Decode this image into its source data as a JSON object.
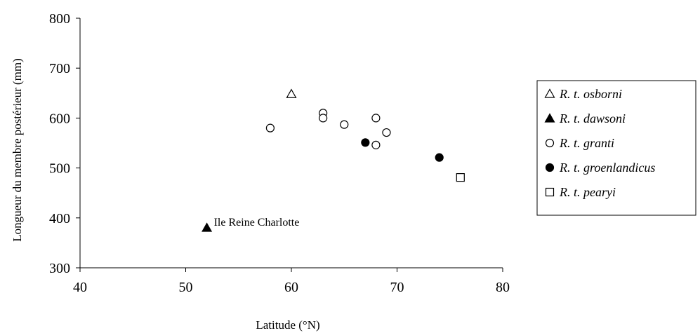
{
  "chart_data": {
    "type": "scatter",
    "xlabel": "Latitude (°N)",
    "ylabel": "Longueur du membre postérieur (mm)",
    "xlim": [
      40,
      80
    ],
    "ylim": [
      300,
      800
    ],
    "xticks": [
      40,
      50,
      60,
      70,
      80
    ],
    "yticks": [
      300,
      400,
      500,
      600,
      700,
      800
    ],
    "xtick_labels": [
      "40",
      "50",
      "60",
      "70",
      "80"
    ],
    "ytick_labels": [
      "300",
      "400",
      "500",
      "600",
      "700",
      "800"
    ],
    "grid": false,
    "legend_position": "right",
    "series": [
      {
        "name": "R. t. osborni",
        "marker": "triangle-open",
        "points": [
          {
            "x": 60,
            "y": 648
          }
        ]
      },
      {
        "name": "R. t. dawsoni",
        "marker": "triangle-filled",
        "points": [
          {
            "x": 52,
            "y": 380
          }
        ]
      },
      {
        "name": "R. t. granti",
        "marker": "circle-open",
        "points": [
          {
            "x": 58,
            "y": 580
          },
          {
            "x": 63,
            "y": 610
          },
          {
            "x": 63,
            "y": 600
          },
          {
            "x": 65,
            "y": 587
          },
          {
            "x": 68,
            "y": 600
          },
          {
            "x": 68,
            "y": 546
          },
          {
            "x": 69,
            "y": 571
          }
        ]
      },
      {
        "name": "R. t. groenlandicus",
        "marker": "circle-filled",
        "points": [
          {
            "x": 67,
            "y": 551
          },
          {
            "x": 74,
            "y": 521
          }
        ]
      },
      {
        "name": "R. t. pearyi",
        "marker": "square-open",
        "points": [
          {
            "x": 76,
            "y": 481
          }
        ]
      }
    ],
    "annotations": [
      {
        "text": "Ile Reine Charlotte",
        "x": 52,
        "y": 380
      }
    ]
  }
}
